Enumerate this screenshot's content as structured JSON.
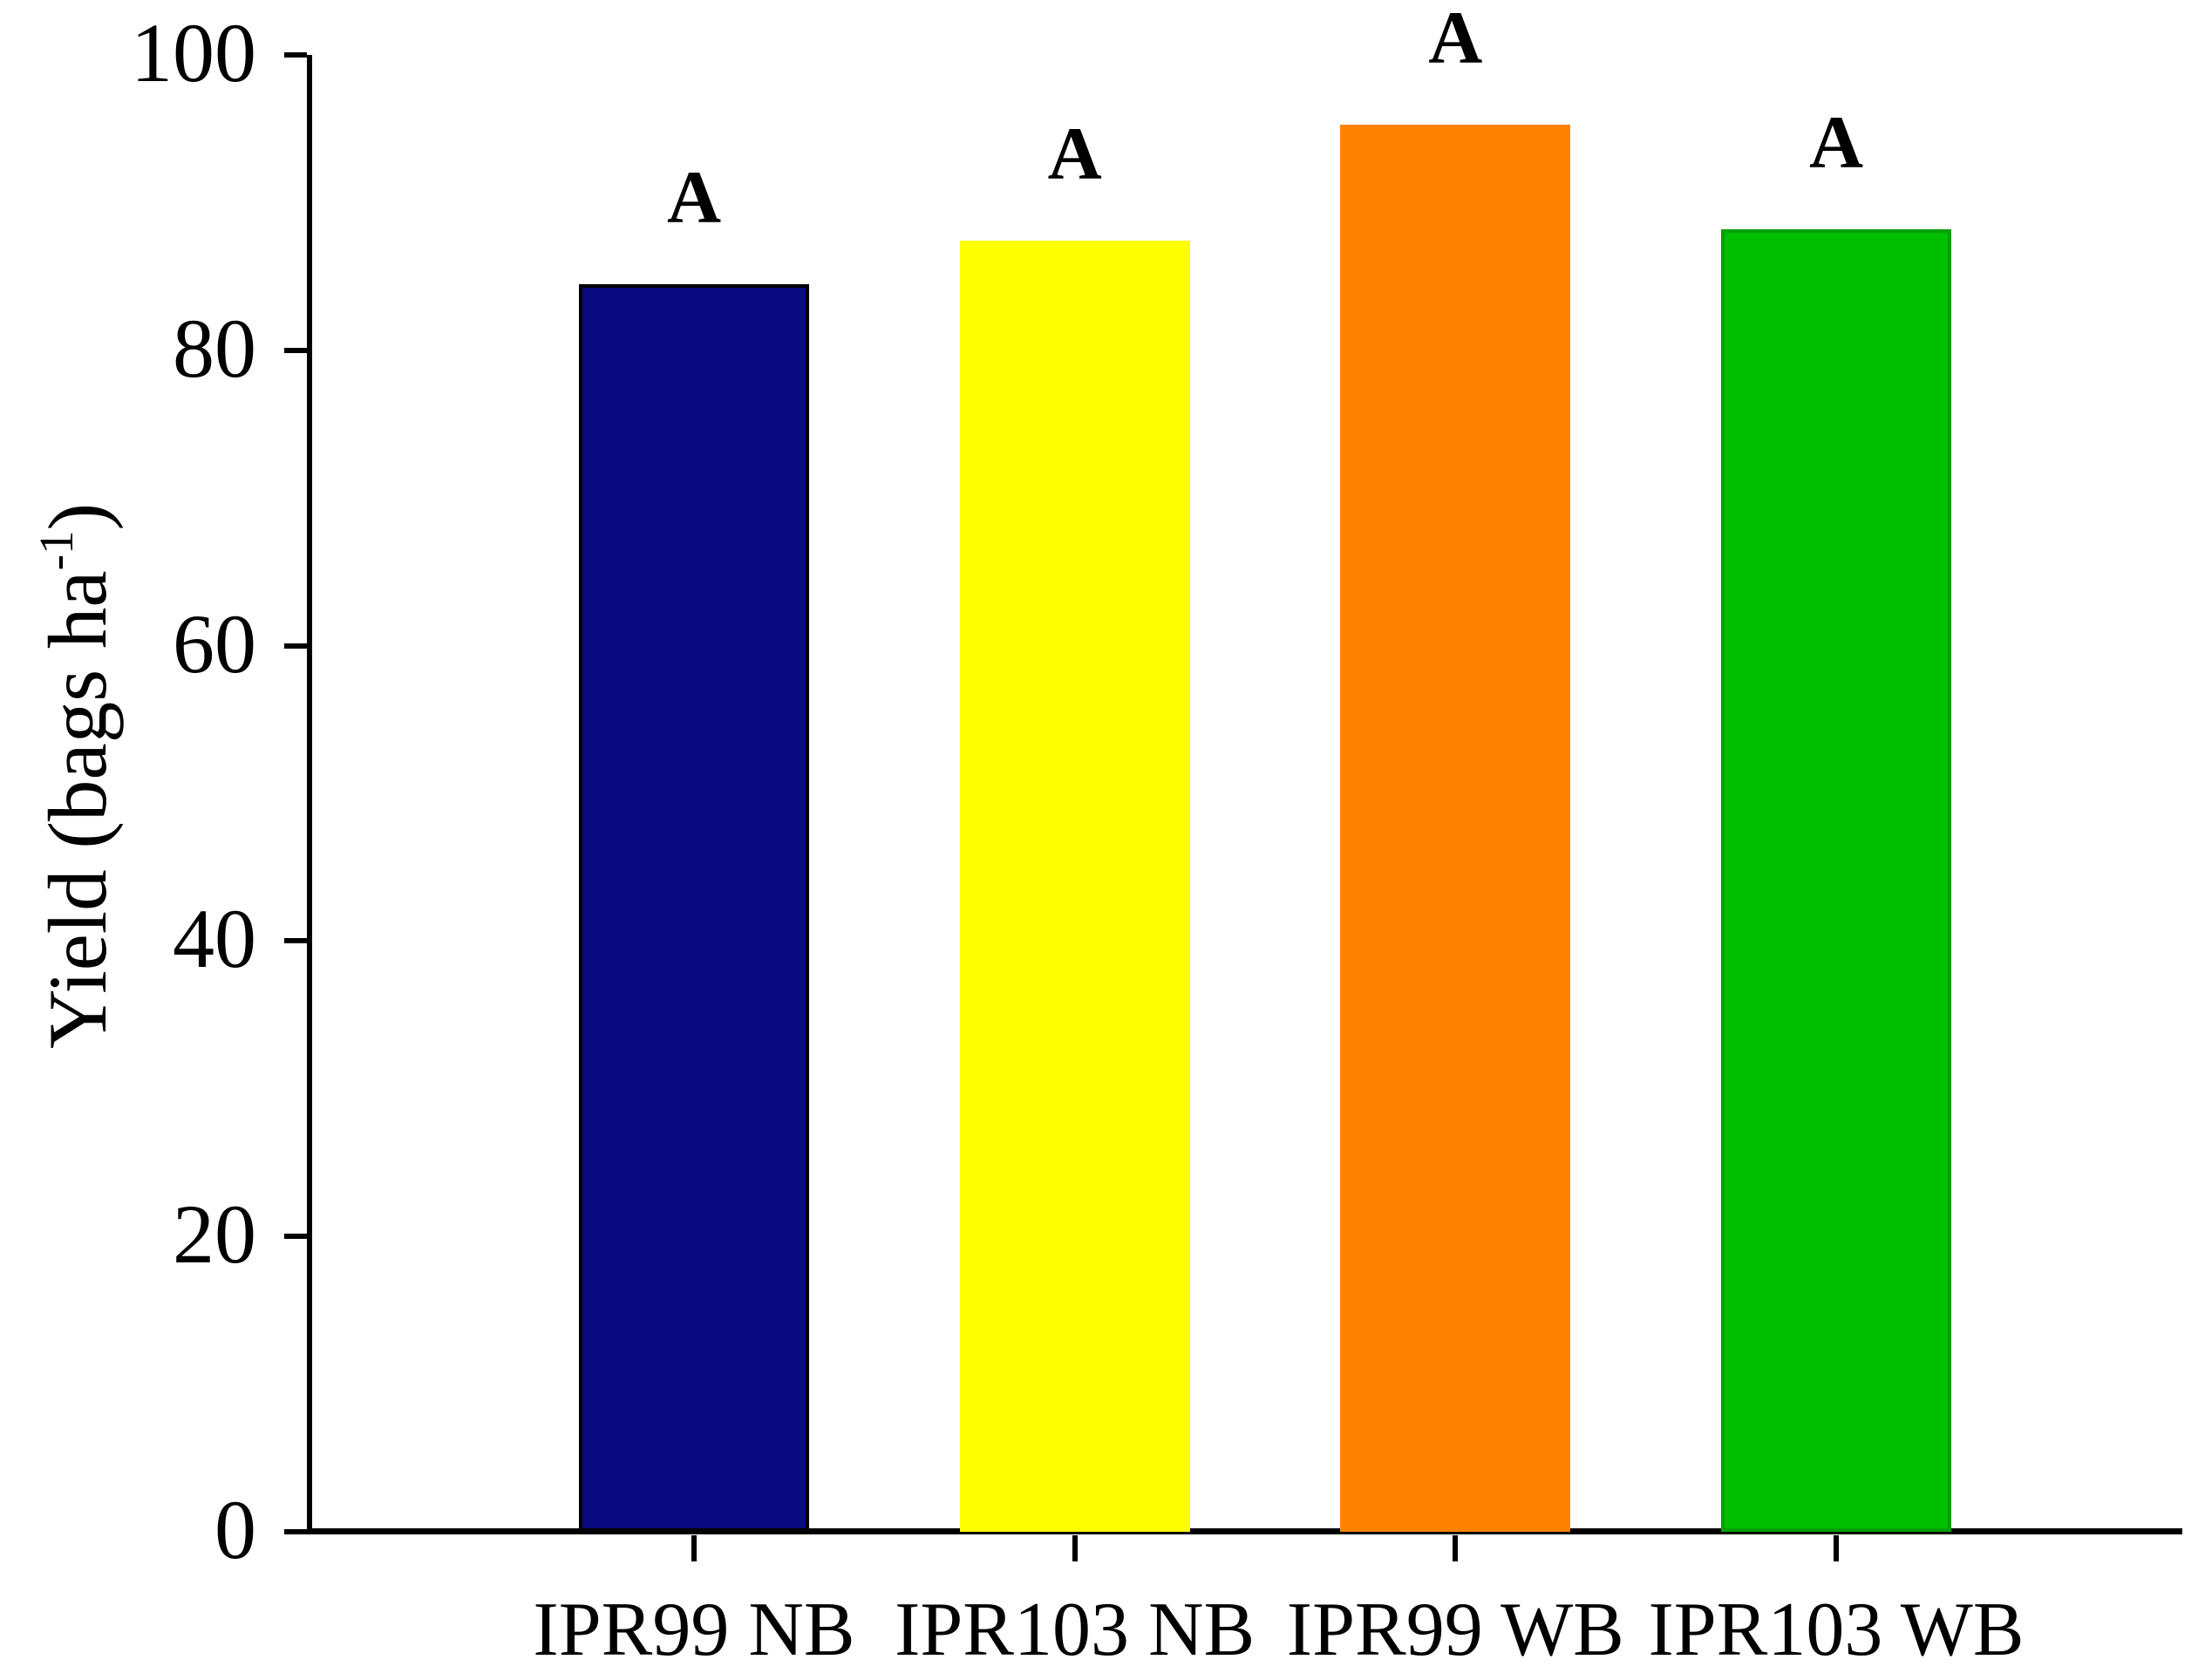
{
  "y_axis_title": {
    "main": "Yield (bags ha",
    "sup": "-1",
    "close": ")"
  },
  "chart_data": {
    "type": "bar",
    "title": "",
    "xlabel": "",
    "ylabel": "Yield (bags ha⁻¹)",
    "categories": [
      "IPR99 NB",
      "IPR103 NB",
      "IPR99 WB",
      "IPR103 WB"
    ],
    "values": [
      84.5,
      87.4,
      95.3,
      88.2
    ],
    "data_labels": [
      "A",
      "A",
      "A",
      "A"
    ],
    "bar_colors": [
      "#0A0A80",
      "#FFFF00",
      "#FF8300",
      "#00BE00"
    ],
    "bar_edge_colors": [
      "#000000",
      "#FFFF00",
      "#FF8300",
      "#00A000"
    ],
    "axis_color": "#000000",
    "background_color": "#ffffff",
    "ylim": [
      0,
      100
    ],
    "yticks": [
      0,
      20,
      40,
      60,
      80,
      100
    ],
    "grid": false,
    "legend": null
  }
}
